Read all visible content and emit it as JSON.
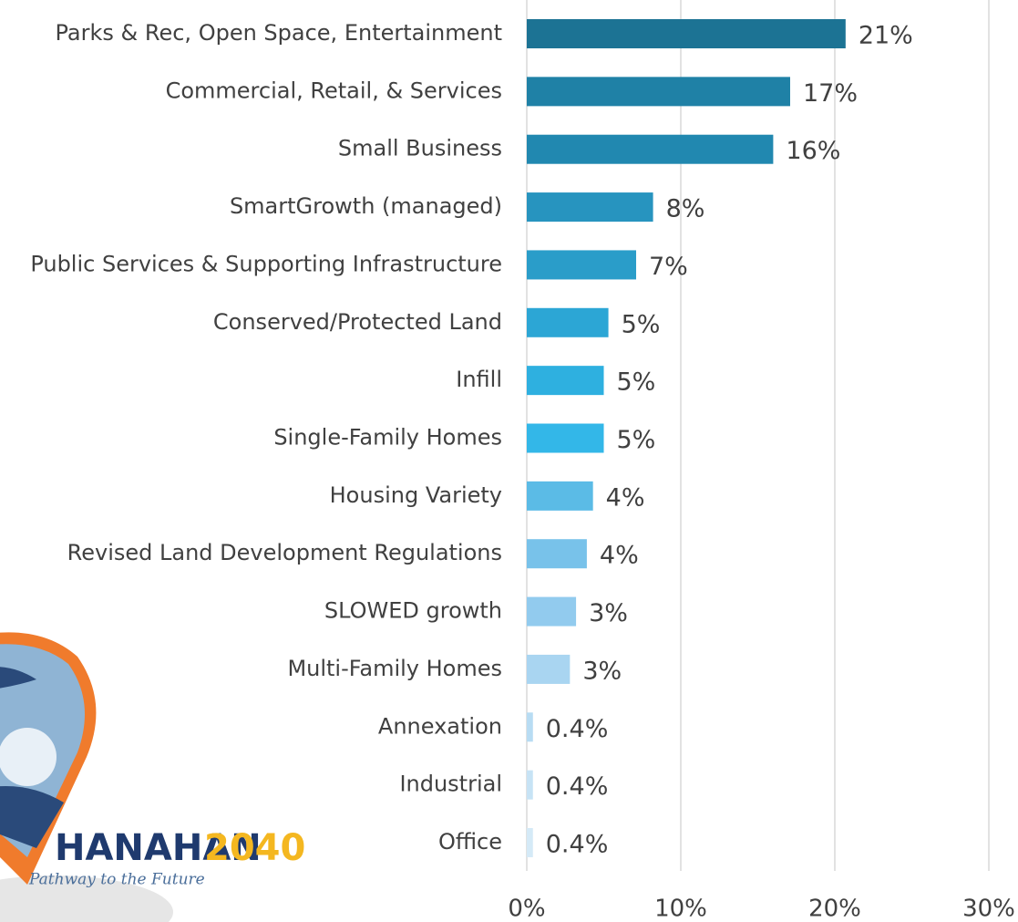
{
  "chart_data": {
    "type": "barh",
    "categories": [
      "Parks & Rec, Open Space, Entertainment",
      "Commercial, Retail, & Services",
      "Small Business",
      "SmartGrowth (managed)",
      "Public Services & Supporting Infrastructure",
      "Conserved/Protected Land",
      "Infill",
      "Single-Family Homes",
      "Housing Variety",
      "Revised Land Development Regulations",
      "SLOWED growth",
      "Multi-Family Homes",
      "Annexation",
      "Industrial",
      "Office"
    ],
    "values": [
      20.7,
      17.1,
      16.0,
      8.2,
      7.1,
      5.3,
      5.0,
      5.0,
      4.3,
      3.9,
      3.2,
      2.8,
      0.4,
      0.4,
      0.4
    ],
    "value_labels": [
      "21%",
      "17%",
      "16%",
      "8%",
      "7%",
      "5%",
      "5%",
      "5%",
      "4%",
      "4%",
      "3%",
      "3%",
      "0.4%",
      "0.4%",
      "0.4%"
    ],
    "colors": [
      "#1c7394",
      "#1f81a6",
      "#2188b0",
      "#2794bf",
      "#2a9dc9",
      "#2ca6d5",
      "#2eb0e0",
      "#33b7e8",
      "#5bbbe6",
      "#78c2ea",
      "#92cbee",
      "#a9d5f1",
      "#b8dcf3",
      "#c7e3f5",
      "#d5eaf7"
    ],
    "xlim": [
      0,
      30
    ],
    "xticks": [
      {
        "value": 0,
        "label": "0%"
      },
      {
        "value": 10,
        "label": "10%"
      },
      {
        "value": 20,
        "label": "20%"
      },
      {
        "value": 30,
        "label": "30%"
      }
    ],
    "grid": true
  },
  "logo": {
    "name": "HANAHAN",
    "year": "2040",
    "tagline": "Pathway to the Future"
  }
}
